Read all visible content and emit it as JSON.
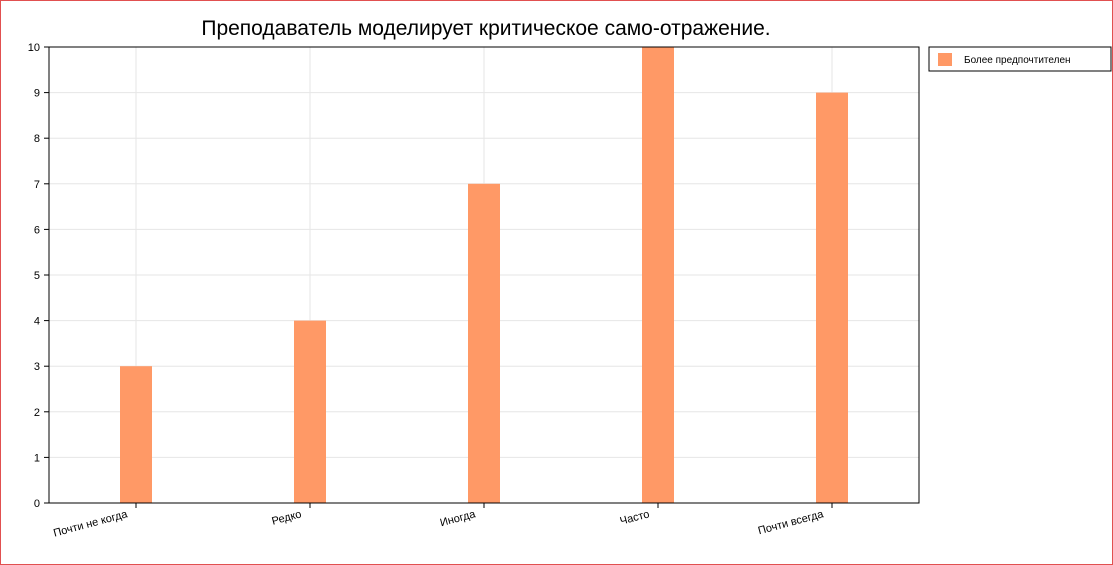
{
  "chart_data": {
    "type": "bar",
    "title": "Преподаватель моделирует критическое само-отражение.",
    "categories": [
      "Почти не когда",
      "Редко",
      "Иногда",
      "Часто",
      "Почти всегда"
    ],
    "series": [
      {
        "name": "Более предпочтителен",
        "values": [
          3,
          4,
          7,
          10,
          9
        ],
        "color": "#ff9966"
      }
    ],
    "yticks": [
      "0",
      "1",
      "2",
      "3",
      "4",
      "5",
      "6",
      "7",
      "8",
      "9",
      "10"
    ],
    "ylim": [
      0,
      10
    ],
    "grid": true,
    "legend_position": "top-right"
  },
  "colors": {
    "frame_border": "#e15050",
    "grid": "#e6e6e6",
    "axis": "#000000"
  }
}
